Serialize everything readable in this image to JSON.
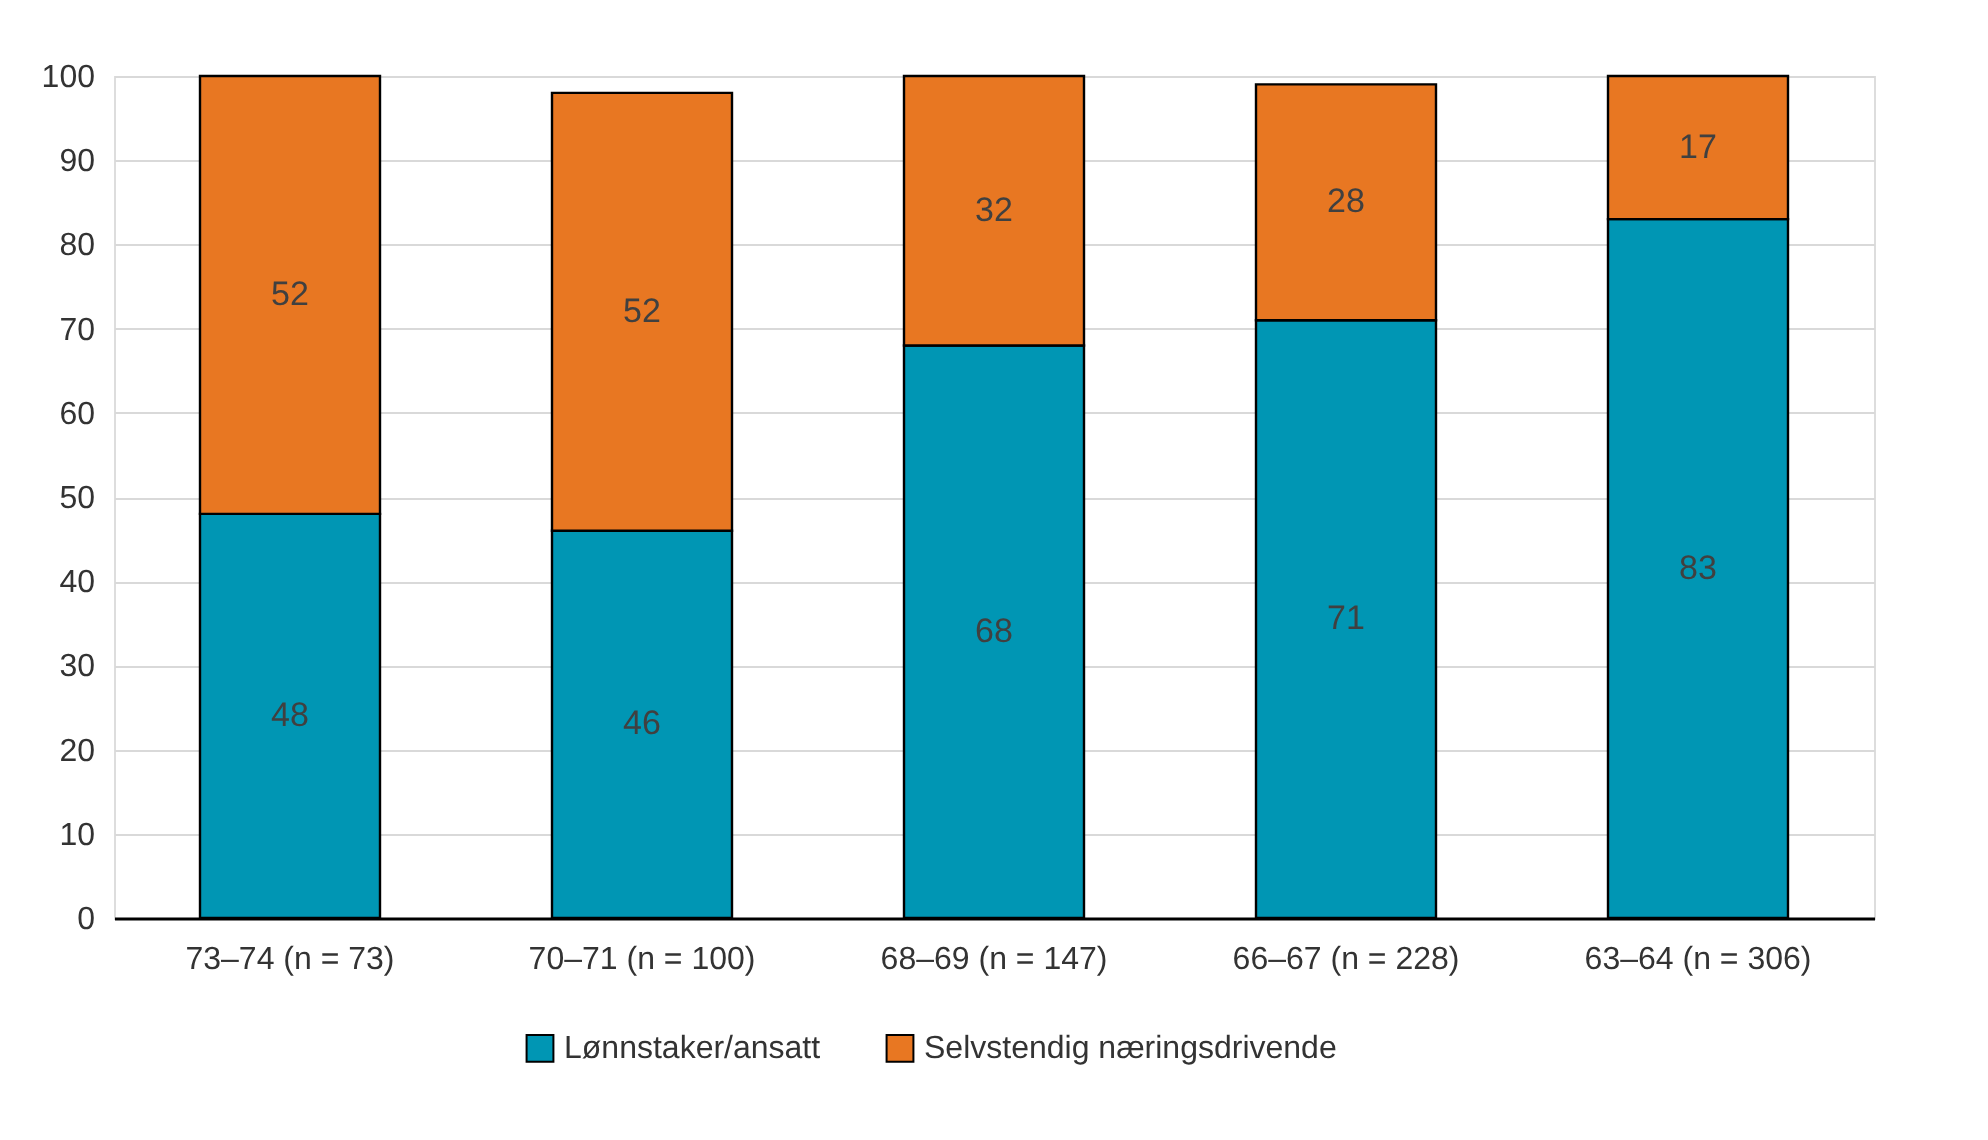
{
  "chart_data": {
    "type": "bar",
    "stacked": true,
    "data_labels": true,
    "categories": [
      "73–74 (n = 73)",
      "70–71 (n = 100)",
      "68–69 (n = 147)",
      "66–67 (n = 228)",
      "63–64 (n = 306)"
    ],
    "series": [
      {
        "name": "Lønnstaker/ansatt",
        "color": "#0096b4",
        "values": [
          48,
          46,
          68,
          71,
          83
        ]
      },
      {
        "name": "Selvstendig næringsdrivende",
        "color": "#e87722",
        "values": [
          52,
          52,
          32,
          28,
          17
        ]
      }
    ],
    "ylim": [
      0,
      100
    ],
    "yticks": [
      0,
      10,
      20,
      30,
      40,
      50,
      60,
      70,
      80,
      90,
      100
    ],
    "grid": "y",
    "legend": "bottom"
  }
}
